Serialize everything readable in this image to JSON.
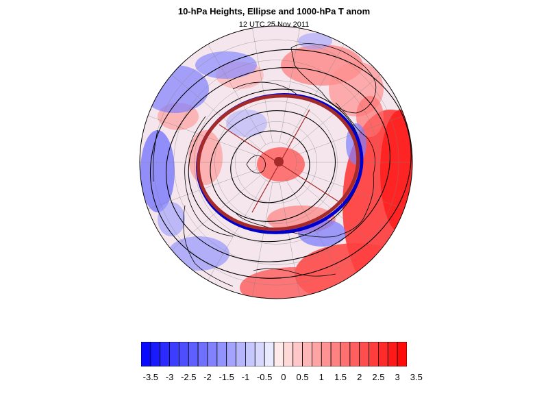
{
  "title": "10-hPa Heights, Ellipse and 1000-hPa T anom",
  "subtitle": "12 UTC 25 Nov 2011",
  "colorbar": {
    "labels": [
      "-3.5",
      "-3",
      "-2.5",
      "-2",
      "-1.5",
      "-1",
      "-0.5",
      "0",
      "0.5",
      "1",
      "1.5",
      "2",
      "2.5",
      "3",
      "3.5"
    ],
    "min": -3.75,
    "max": 3.75,
    "step": 0.25,
    "cold_color": "#0000ff",
    "warm_color": "#ff0000",
    "neutral_color": "#ffffff"
  },
  "map": {
    "projection": "north-polar-stereographic",
    "ellipse_color": "#a52a2a",
    "ellipse_outline_color": "#0000cc",
    "height_contour_color": "#000000",
    "coastline_color": "#000000",
    "grid_color": "#808080"
  }
}
